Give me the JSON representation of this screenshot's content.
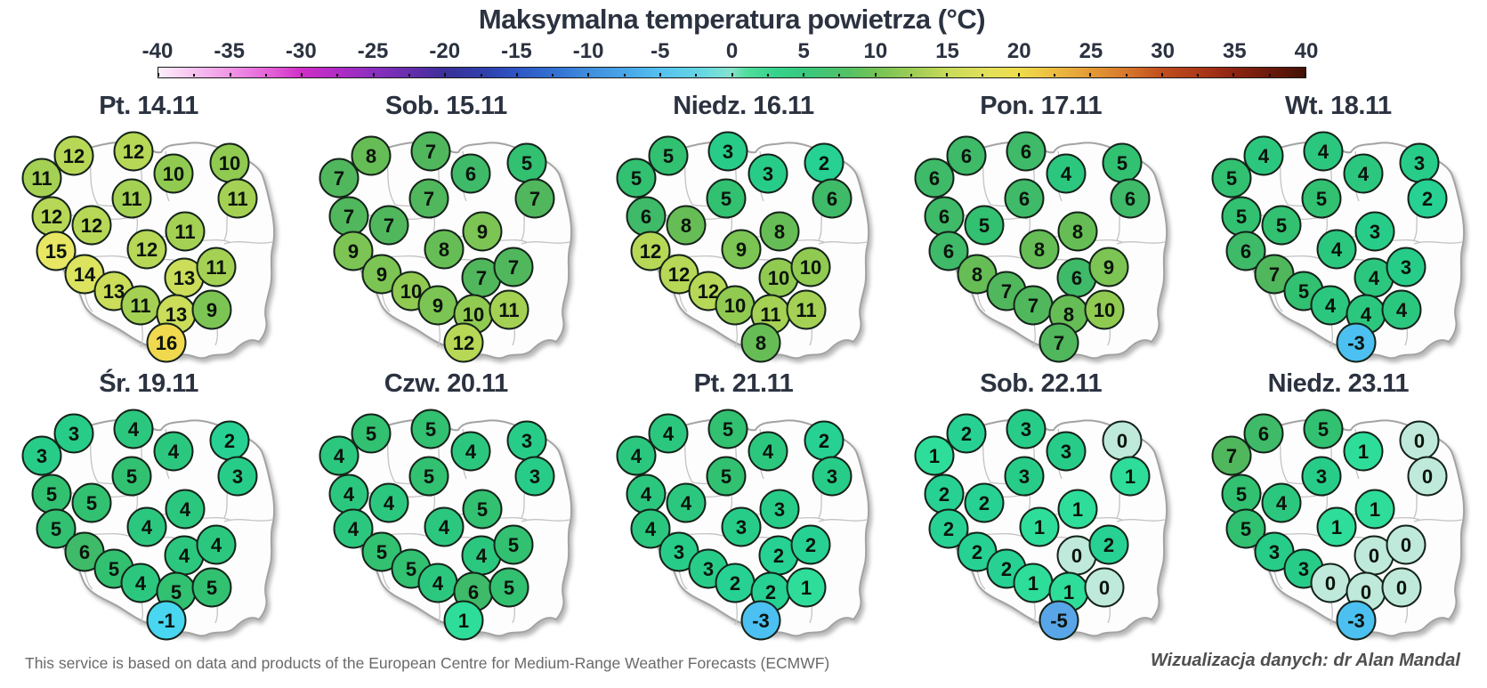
{
  "header": {
    "title": "Maksymalna temperatura powietrza (°C)"
  },
  "colorbar": {
    "min": -40,
    "max": 40,
    "ticks": [
      "-40",
      "-35",
      "-30",
      "-25",
      "-20",
      "-15",
      "-10",
      "-5",
      "0",
      "5",
      "10",
      "15",
      "20",
      "25",
      "30",
      "35",
      "40"
    ],
    "gradient": [
      {
        "value": -40,
        "color": "#fdeef9"
      },
      {
        "value": -35,
        "color": "#f095e6"
      },
      {
        "value": -32,
        "color": "#e25cd7"
      },
      {
        "value": -30,
        "color": "#cf2ec6"
      },
      {
        "value": -27,
        "color": "#a82cc4"
      },
      {
        "value": -25,
        "color": "#8b2fc0"
      },
      {
        "value": -22,
        "color": "#5e2ea8"
      },
      {
        "value": -20,
        "color": "#3b3099"
      },
      {
        "value": -17,
        "color": "#2f41ad"
      },
      {
        "value": -15,
        "color": "#2d57c5"
      },
      {
        "value": -12,
        "color": "#3575d4"
      },
      {
        "value": -10,
        "color": "#3f8ede"
      },
      {
        "value": -7,
        "color": "#4aabe9"
      },
      {
        "value": -5,
        "color": "#55c2ef"
      },
      {
        "value": -2,
        "color": "#66d8e2"
      },
      {
        "value": 0,
        "color": "#86e3cc"
      },
      {
        "value": 1,
        "color": "#52dd9e"
      },
      {
        "value": 3,
        "color": "#35d38b"
      },
      {
        "value": 5,
        "color": "#38c97e"
      },
      {
        "value": 8,
        "color": "#52c167"
      },
      {
        "value": 10,
        "color": "#72c355"
      },
      {
        "value": 13,
        "color": "#a5cf55"
      },
      {
        "value": 15,
        "color": "#c8da5a"
      },
      {
        "value": 18,
        "color": "#e4e15b"
      },
      {
        "value": 20,
        "color": "#eedd4b"
      },
      {
        "value": 22,
        "color": "#edc243"
      },
      {
        "value": 25,
        "color": "#e49a35"
      },
      {
        "value": 28,
        "color": "#d4702a"
      },
      {
        "value": 30,
        "color": "#c04e1e"
      },
      {
        "value": 33,
        "color": "#a93517"
      },
      {
        "value": 35,
        "color": "#8d2412"
      },
      {
        "value": 38,
        "color": "#64180a"
      },
      {
        "value": 40,
        "color": "#421106"
      }
    ]
  },
  "value_colors": {
    "-5": "#58a6e8",
    "-3": "#4cc0f1",
    "-1": "#48d6f0",
    "0": "#bfe9da",
    "1": "#2edd99",
    "2": "#26d193",
    "3": "#28cc89",
    "4": "#2cc77e",
    "5": "#32c071",
    "6": "#3eba68",
    "7": "#50b75c",
    "8": "#66bd55",
    "9": "#7cc453",
    "10": "#90ca51",
    "11": "#a4d153",
    "12": "#b7d756",
    "13": "#cbdd59",
    "14": "#dce35e",
    "15": "#e8e763",
    "16": "#f0d94e"
  },
  "chart_data": {
    "type": "heatmap",
    "title": "Maksymalna temperatura powietrza (°C)",
    "unit": "°C",
    "colorbar_range": [
      -40,
      40
    ],
    "colorbar_tick_step": 5,
    "legend_position": "top",
    "days": [
      "Pt. 14.11",
      "Sob. 15.11",
      "Niedz. 16.11",
      "Pon. 17.11",
      "Wt. 18.11",
      "Śr. 19.11",
      "Czw. 20.11",
      "Pt. 21.11",
      "Sob. 22.11",
      "Niedz. 23.11"
    ],
    "station_positions": [
      [
        83,
        37
      ],
      [
        150,
        32
      ],
      [
        195,
        57
      ],
      [
        258,
        45
      ],
      [
        47,
        62
      ],
      [
        148,
        85
      ],
      [
        267,
        85
      ],
      [
        58,
        105
      ],
      [
        103,
        115
      ],
      [
        208,
        122
      ],
      [
        63,
        144
      ],
      [
        165,
        142
      ],
      [
        95,
        170
      ],
      [
        207,
        174
      ],
      [
        243,
        162
      ],
      [
        128,
        189
      ],
      [
        158,
        205
      ],
      [
        198,
        215
      ],
      [
        238,
        210
      ],
      [
        187,
        247
      ]
    ],
    "series": [
      {
        "name": "Pt. 14.11",
        "values": [
          12,
          12,
          10,
          10,
          11,
          11,
          11,
          12,
          12,
          11,
          15,
          12,
          14,
          13,
          11,
          13,
          11,
          13,
          9,
          16
        ]
      },
      {
        "name": "Sob. 15.11",
        "values": [
          8,
          7,
          6,
          5,
          7,
          7,
          7,
          7,
          7,
          9,
          9,
          8,
          9,
          7,
          7,
          10,
          9,
          10,
          11,
          12
        ]
      },
      {
        "name": "Niedz. 16.11",
        "values": [
          5,
          3,
          3,
          2,
          5,
          5,
          6,
          6,
          8,
          8,
          12,
          9,
          12,
          10,
          10,
          12,
          10,
          11,
          11,
          8
        ]
      },
      {
        "name": "Pon. 17.11",
        "values": [
          6,
          6,
          4,
          5,
          6,
          6,
          6,
          6,
          5,
          8,
          6,
          8,
          8,
          6,
          9,
          7,
          7,
          8,
          10,
          7
        ]
      },
      {
        "name": "Wt. 18.11",
        "values": [
          4,
          4,
          4,
          3,
          5,
          5,
          2,
          5,
          5,
          3,
          6,
          4,
          7,
          4,
          3,
          5,
          4,
          4,
          4,
          -3
        ]
      },
      {
        "name": "Śr. 19.11",
        "values": [
          3,
          4,
          4,
          2,
          3,
          5,
          3,
          5,
          5,
          4,
          5,
          4,
          6,
          4,
          4,
          5,
          4,
          5,
          5,
          -1
        ]
      },
      {
        "name": "Czw. 20.11",
        "values": [
          5,
          5,
          4,
          3,
          4,
          5,
          3,
          4,
          4,
          5,
          4,
          4,
          5,
          4,
          5,
          5,
          4,
          6,
          5,
          1
        ]
      },
      {
        "name": "Pt. 21.11",
        "values": [
          4,
          5,
          4,
          2,
          4,
          5,
          3,
          4,
          4,
          3,
          4,
          3,
          3,
          2,
          2,
          3,
          2,
          2,
          1,
          -3
        ]
      },
      {
        "name": "Sob. 22.11",
        "values": [
          2,
          3,
          3,
          0,
          1,
          3,
          1,
          2,
          2,
          1,
          2,
          1,
          2,
          0,
          2,
          2,
          1,
          1,
          0,
          -5
        ]
      },
      {
        "name": "Niedz. 23.11",
        "values": [
          6,
          5,
          1,
          0,
          7,
          3,
          0,
          5,
          4,
          1,
          5,
          1,
          3,
          0,
          0,
          3,
          0,
          0,
          0,
          -3
        ]
      }
    ]
  },
  "footer": {
    "left": "This service is based on data and products of the European Centre for Medium-Range Weather Forecasts (ECMWF)",
    "right": "Wizualizacja danych: dr Alan Mandal"
  }
}
